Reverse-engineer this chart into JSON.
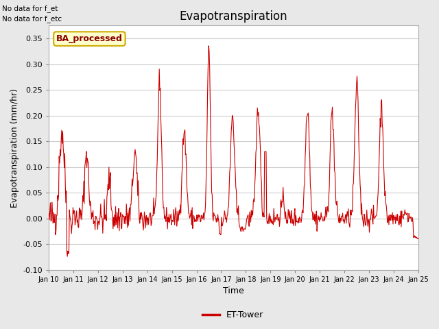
{
  "title": "Evapotranspiration",
  "xlabel": "Time",
  "ylabel": "Evapotranspiration (mm/hr)",
  "ylim": [
    -0.1,
    0.375
  ],
  "yticks": [
    -0.1,
    -0.05,
    0.0,
    0.05,
    0.1,
    0.15,
    0.2,
    0.25,
    0.3,
    0.35
  ],
  "xlim_days": [
    10,
    25
  ],
  "xtick_labels": [
    "Jan 10",
    "Jan 11",
    "Jan 12",
    "Jan 13",
    "Jan 14",
    "Jan 15",
    "Jan 16",
    "Jan 17",
    "Jan 18",
    "Jan 19",
    "Jan 20",
    "Jan 21",
    "Jan 22",
    "Jan 23",
    "Jan 24",
    "Jan 25"
  ],
  "line_color": "#cc0000",
  "line_width": 0.8,
  "bg_color": "#e8e8e8",
  "plot_bg_color": "#ffffff",
  "title_fontsize": 12,
  "label_fontsize": 9,
  "tick_fontsize": 8,
  "no_data_text1": "No data for f_et",
  "no_data_text2": "No data for f_etc",
  "ba_processed_text": "BA_processed",
  "legend_label": "ET-Tower",
  "legend_line_color": "#cc0000"
}
